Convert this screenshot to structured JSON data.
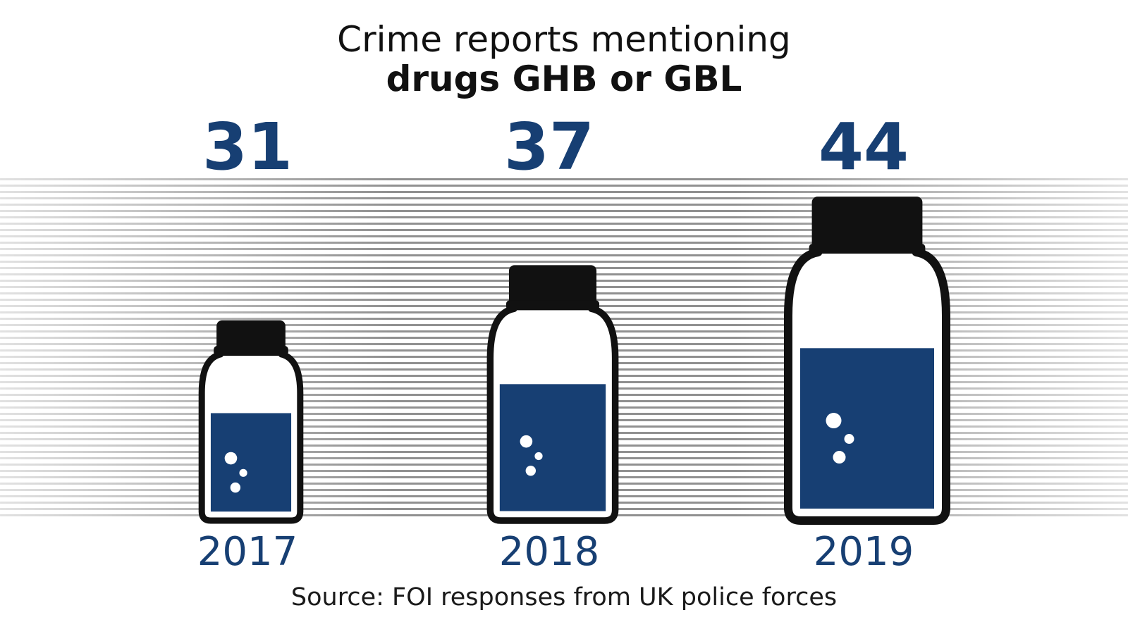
{
  "colors": {
    "accent": "#173f73",
    "bottle_outline": "#111111",
    "background": "#ffffff"
  },
  "chart_data": {
    "type": "bar",
    "title": "Crime reports mentioning",
    "subtitle": "drugs GHB or GBL",
    "categories": [
      "2017",
      "2018",
      "2019"
    ],
    "values": [
      31,
      37,
      44
    ],
    "source": "Source: FOI responses from UK police forces",
    "grid": false,
    "legend": "none"
  }
}
